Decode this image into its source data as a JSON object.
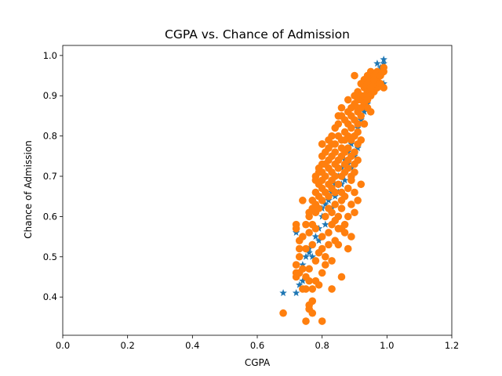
{
  "chart_data": {
    "type": "scatter",
    "title": "CGPA vs. Chance of Admission",
    "xlabel": "CGPA",
    "ylabel": "Chance of Admission",
    "xlim": [
      0.0,
      1.2
    ],
    "ylim": [
      0.305,
      1.025
    ],
    "xticks": [
      "0.0",
      "0.2",
      "0.4",
      "0.6",
      "0.8",
      "1.0",
      "1.2"
    ],
    "yticks": [
      "0.4",
      "0.5",
      "0.6",
      "0.7",
      "0.8",
      "0.9",
      "1.0"
    ],
    "grid": false,
    "legend": "none",
    "series": [
      {
        "marker": "star",
        "color": "#1f77b4",
        "points": [
          [
            0.68,
            0.41
          ],
          [
            0.72,
            0.41
          ],
          [
            0.73,
            0.43
          ],
          [
            0.74,
            0.44
          ],
          [
            0.72,
            0.56
          ],
          [
            0.74,
            0.48
          ],
          [
            0.75,
            0.5
          ],
          [
            0.76,
            0.51
          ],
          [
            0.77,
            0.53
          ],
          [
            0.78,
            0.55
          ],
          [
            0.79,
            0.57
          ],
          [
            0.8,
            0.6
          ],
          [
            0.8,
            0.62
          ],
          [
            0.81,
            0.63
          ],
          [
            0.82,
            0.64
          ],
          [
            0.83,
            0.66
          ],
          [
            0.84,
            0.68
          ],
          [
            0.85,
            0.7
          ],
          [
            0.86,
            0.72
          ],
          [
            0.87,
            0.74
          ],
          [
            0.88,
            0.76
          ],
          [
            0.89,
            0.78
          ],
          [
            0.9,
            0.8
          ],
          [
            0.91,
            0.82
          ],
          [
            0.92,
            0.84
          ],
          [
            0.93,
            0.86
          ],
          [
            0.94,
            0.88
          ],
          [
            0.95,
            0.9
          ],
          [
            0.96,
            0.92
          ],
          [
            0.97,
            0.94
          ],
          [
            0.98,
            0.96
          ],
          [
            0.98,
            0.97
          ],
          [
            0.99,
            0.98
          ],
          [
            0.99,
            0.99
          ],
          [
            0.97,
            0.98
          ],
          [
            0.96,
            0.95
          ],
          [
            0.93,
            0.83
          ],
          [
            0.91,
            0.77
          ],
          [
            0.89,
            0.72
          ],
          [
            0.87,
            0.69
          ],
          [
            0.85,
            0.66
          ],
          [
            0.83,
            0.62
          ],
          [
            0.81,
            0.58
          ],
          [
            0.79,
            0.54
          ],
          [
            0.77,
            0.5
          ],
          [
            0.9,
            0.75
          ],
          [
            0.92,
            0.85
          ],
          [
            0.94,
            0.91
          ],
          [
            0.86,
            0.68
          ],
          [
            0.84,
            0.65
          ],
          [
            0.88,
            0.73
          ],
          [
            0.95,
            0.93
          ],
          [
            0.99,
            0.93
          ],
          [
            0.76,
            0.52
          ]
        ]
      },
      {
        "marker": "circle",
        "color": "#ff7f0e",
        "points": [
          [
            0.68,
            0.36
          ],
          [
            0.75,
            0.34
          ],
          [
            0.8,
            0.34
          ],
          [
            0.77,
            0.36
          ],
          [
            0.76,
            0.37
          ],
          [
            0.77,
            0.39
          ],
          [
            0.76,
            0.38
          ],
          [
            0.83,
            0.42
          ],
          [
            0.74,
            0.42
          ],
          [
            0.75,
            0.42
          ],
          [
            0.79,
            0.43
          ],
          [
            0.72,
            0.45
          ],
          [
            0.73,
            0.46
          ],
          [
            0.74,
            0.47
          ],
          [
            0.76,
            0.44
          ],
          [
            0.78,
            0.44
          ],
          [
            0.8,
            0.46
          ],
          [
            0.86,
            0.45
          ],
          [
            0.72,
            0.48
          ],
          [
            0.73,
            0.5
          ],
          [
            0.75,
            0.52
          ],
          [
            0.77,
            0.53
          ],
          [
            0.79,
            0.51
          ],
          [
            0.81,
            0.5
          ],
          [
            0.83,
            0.49
          ],
          [
            0.85,
            0.53
          ],
          [
            0.88,
            0.52
          ],
          [
            0.89,
            0.55
          ],
          [
            0.73,
            0.54
          ],
          [
            0.72,
            0.57
          ],
          [
            0.72,
            0.58
          ],
          [
            0.74,
            0.64
          ],
          [
            0.76,
            0.56
          ],
          [
            0.77,
            0.58
          ],
          [
            0.78,
            0.57
          ],
          [
            0.8,
            0.55
          ],
          [
            0.82,
            0.56
          ],
          [
            0.84,
            0.54
          ],
          [
            0.86,
            0.57
          ],
          [
            0.87,
            0.58
          ],
          [
            0.76,
            0.6
          ],
          [
            0.78,
            0.61
          ],
          [
            0.79,
            0.62
          ],
          [
            0.8,
            0.64
          ],
          [
            0.81,
            0.6
          ],
          [
            0.82,
            0.62
          ],
          [
            0.83,
            0.61
          ],
          [
            0.84,
            0.63
          ],
          [
            0.85,
            0.6
          ],
          [
            0.86,
            0.62
          ],
          [
            0.88,
            0.6
          ],
          [
            0.9,
            0.61
          ],
          [
            0.77,
            0.64
          ],
          [
            0.78,
            0.66
          ],
          [
            0.79,
            0.68
          ],
          [
            0.8,
            0.67
          ],
          [
            0.81,
            0.66
          ],
          [
            0.82,
            0.68
          ],
          [
            0.83,
            0.67
          ],
          [
            0.84,
            0.66
          ],
          [
            0.85,
            0.68
          ],
          [
            0.86,
            0.66
          ],
          [
            0.87,
            0.65
          ],
          [
            0.88,
            0.67
          ],
          [
            0.9,
            0.66
          ],
          [
            0.92,
            0.68
          ],
          [
            0.78,
            0.7
          ],
          [
            0.79,
            0.71
          ],
          [
            0.8,
            0.73
          ],
          [
            0.81,
            0.7
          ],
          [
            0.82,
            0.72
          ],
          [
            0.83,
            0.71
          ],
          [
            0.84,
            0.73
          ],
          [
            0.85,
            0.72
          ],
          [
            0.86,
            0.7
          ],
          [
            0.87,
            0.71
          ],
          [
            0.88,
            0.72
          ],
          [
            0.89,
            0.7
          ],
          [
            0.9,
            0.71
          ],
          [
            0.8,
            0.75
          ],
          [
            0.81,
            0.76
          ],
          [
            0.82,
            0.77
          ],
          [
            0.83,
            0.75
          ],
          [
            0.84,
            0.76
          ],
          [
            0.85,
            0.74
          ],
          [
            0.86,
            0.75
          ],
          [
            0.87,
            0.76
          ],
          [
            0.88,
            0.74
          ],
          [
            0.89,
            0.75
          ],
          [
            0.9,
            0.76
          ],
          [
            0.91,
            0.74
          ],
          [
            0.8,
            0.78
          ],
          [
            0.82,
            0.79
          ],
          [
            0.83,
            0.8
          ],
          [
            0.84,
            0.78
          ],
          [
            0.85,
            0.8
          ],
          [
            0.86,
            0.79
          ],
          [
            0.87,
            0.81
          ],
          [
            0.88,
            0.8
          ],
          [
            0.89,
            0.82
          ],
          [
            0.9,
            0.8
          ],
          [
            0.91,
            0.81
          ],
          [
            0.92,
            0.79
          ],
          [
            0.85,
            0.83
          ],
          [
            0.86,
            0.85
          ],
          [
            0.87,
            0.84
          ],
          [
            0.88,
            0.83
          ],
          [
            0.89,
            0.85
          ],
          [
            0.9,
            0.84
          ],
          [
            0.91,
            0.86
          ],
          [
            0.92,
            0.85
          ],
          [
            0.93,
            0.83
          ],
          [
            0.88,
            0.86
          ],
          [
            0.89,
            0.87
          ],
          [
            0.9,
            0.88
          ],
          [
            0.91,
            0.87
          ],
          [
            0.92,
            0.89
          ],
          [
            0.93,
            0.88
          ],
          [
            0.94,
            0.87
          ],
          [
            0.95,
            0.86
          ],
          [
            0.9,
            0.9
          ],
          [
            0.91,
            0.91
          ],
          [
            0.92,
            0.9
          ],
          [
            0.93,
            0.92
          ],
          [
            0.94,
            0.91
          ],
          [
            0.95,
            0.9
          ],
          [
            0.96,
            0.91
          ],
          [
            0.97,
            0.92
          ],
          [
            0.99,
            0.92
          ],
          [
            0.92,
            0.93
          ],
          [
            0.93,
            0.94
          ],
          [
            0.94,
            0.93
          ],
          [
            0.95,
            0.94
          ],
          [
            0.96,
            0.93
          ],
          [
            0.97,
            0.94
          ],
          [
            0.98,
            0.93
          ],
          [
            0.94,
            0.95
          ],
          [
            0.95,
            0.96
          ],
          [
            0.96,
            0.95
          ],
          [
            0.97,
            0.96
          ],
          [
            0.98,
            0.95
          ],
          [
            0.99,
            0.96
          ],
          [
            0.99,
            0.97
          ],
          [
            0.9,
            0.95
          ],
          [
            0.91,
            0.89
          ],
          [
            0.88,
            0.89
          ],
          [
            0.86,
            0.87
          ],
          [
            0.85,
            0.85
          ],
          [
            0.84,
            0.82
          ],
          [
            0.83,
            0.78
          ],
          [
            0.82,
            0.74
          ],
          [
            0.81,
            0.73
          ],
          [
            0.8,
            0.71
          ],
          [
            0.79,
            0.65
          ],
          [
            0.78,
            0.63
          ],
          [
            0.77,
            0.62
          ],
          [
            0.76,
            0.61
          ],
          [
            0.75,
            0.58
          ],
          [
            0.74,
            0.55
          ],
          [
            0.73,
            0.52
          ],
          [
            0.72,
            0.46
          ],
          [
            0.8,
            0.78
          ],
          [
            0.79,
            0.72
          ],
          [
            0.78,
            0.69
          ],
          [
            0.83,
            0.69
          ],
          [
            0.87,
            0.73
          ],
          [
            0.88,
            0.77
          ],
          [
            0.89,
            0.79
          ],
          [
            0.91,
            0.83
          ],
          [
            0.92,
            0.87
          ],
          [
            0.93,
            0.9
          ],
          [
            0.94,
            0.89
          ],
          [
            0.95,
            0.92
          ],
          [
            0.96,
            0.94
          ],
          [
            0.84,
            0.59
          ],
          [
            0.85,
            0.57
          ],
          [
            0.87,
            0.56
          ],
          [
            0.82,
            0.53
          ],
          [
            0.8,
            0.52
          ],
          [
            0.78,
            0.49
          ],
          [
            0.76,
            0.47
          ],
          [
            0.75,
            0.45
          ],
          [
            0.77,
            0.42
          ],
          [
            0.81,
            0.48
          ],
          [
            0.83,
            0.58
          ],
          [
            0.86,
            0.64
          ],
          [
            0.89,
            0.63
          ],
          [
            0.91,
            0.64
          ],
          [
            0.89,
            0.69
          ],
          [
            0.9,
            0.73
          ],
          [
            0.91,
            0.78
          ],
          [
            0.86,
            0.77
          ],
          [
            0.87,
            0.79
          ],
          [
            0.84,
            0.7
          ],
          [
            0.82,
            0.65
          ],
          [
            0.8,
            0.69
          ]
        ]
      }
    ]
  }
}
